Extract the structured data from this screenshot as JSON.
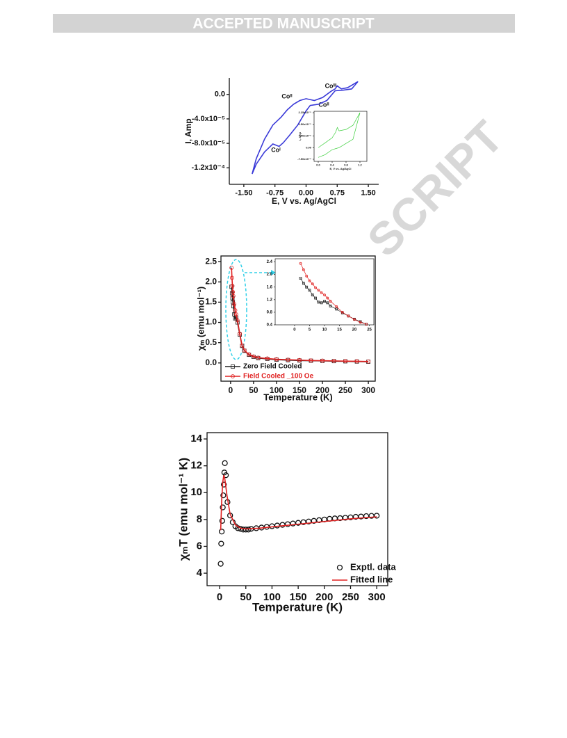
{
  "header": {
    "title": "ACCEPTED MANUSCRIPT"
  },
  "watermark": "SCRIPT",
  "chart_data": [
    {
      "type": "line",
      "x_label": "E, V vs. Ag/AgCl",
      "y_label": "I, Amp",
      "xlim": [
        -1.85,
        1.75
      ],
      "ylim": [
        -0.000147,
        2.7e-05
      ],
      "xticks": [
        {
          "value": -1.5,
          "label": "-1.50"
        },
        {
          "value": -0.75,
          "label": "-0.75"
        },
        {
          "value": 0,
          "label": "0.00"
        },
        {
          "value": 0.75,
          "label": "0.75"
        },
        {
          "value": 1.5,
          "label": "1.50"
        }
      ],
      "yticks": [
        {
          "value": 0,
          "label": "0.0"
        },
        {
          "value": -4e-05,
          "label": "-4.0x10⁻⁵"
        },
        {
          "value": -8e-05,
          "label": "-8.0x10⁻⁵"
        },
        {
          "value": -0.00012,
          "label": "-1.2x10⁻⁴"
        }
      ],
      "annotations": [
        "Coᴵᴵ",
        "Coᴵ",
        "Coᴵᴵᴵ",
        "Coᴵᴵ"
      ],
      "series": [
        {
          "color": "#3a3ad8",
          "mode": "line",
          "x": [
            -1.3,
            -1.2,
            -1.0,
            -0.8,
            -0.6,
            -0.45,
            -0.3,
            -0.15,
            0.0,
            0.2,
            0.4,
            0.6,
            0.7,
            0.75,
            0.85,
            1.0,
            1.25,
            1.1,
            0.9,
            0.7,
            0.5,
            0.3,
            0.1,
            0.0,
            -0.2,
            -0.4,
            -0.55,
            -0.65,
            -0.8,
            -1.0,
            -1.2,
            -1.3
          ],
          "values": [
            -0.00013,
            -0.000105,
            -7.3e-05,
            -5e-05,
            -3.7e-05,
            -2.5e-05,
            -1.6e-05,
            -1e-05,
            -7e-06,
            -1e-05,
            -5e-06,
            5e-06,
            9e-06,
            1.4e-05,
            9e-06,
            1.1e-05,
            2.1e-05,
            9e-06,
            7e-06,
            6e-06,
            -1e-05,
            -1.6e-05,
            -1.8e-05,
            -2.7e-05,
            -5e-05,
            -6.7e-05,
            -7.9e-05,
            -8.5e-05,
            -8.1e-05,
            -9.4e-05,
            -0.000114,
            -0.00013
          ]
        }
      ]
    },
    {
      "type": "line",
      "x_label": "E, V vs. Ag/AgCl",
      "y_label": "I, Amp",
      "xlim": [
        -0.12,
        1.4
      ],
      "ylim": [
        -8.85e-06,
        2.34e-05
      ],
      "xticks": [
        {
          "value": 0,
          "label": "0.0"
        },
        0.4,
        0.8,
        1.2
      ],
      "yticks": [
        {
          "value": 2.25e-05,
          "label": "2.25x10⁻⁵"
        },
        {
          "value": 1.5e-05,
          "label": "1.50x10⁻⁵"
        },
        {
          "value": 7.5e-06,
          "label": "7.50x10⁻⁶"
        },
        {
          "value": 0,
          "label": "0.00"
        },
        {
          "value": -7.5e-06,
          "label": "-7.50x10⁻⁶"
        }
      ],
      "series": [
        {
          "color": "#3ccf3c",
          "mode": "line",
          "x": [
            0.0,
            0.2,
            0.4,
            0.5,
            0.55,
            0.6,
            0.8,
            1.0,
            1.2,
            1.0,
            0.8,
            0.6,
            0.4,
            0.2,
            0.0
          ],
          "values": [
            0,
            3.1e-06,
            6.3e-06,
            9.9e-06,
            1.3e-05,
            1.08e-05,
            1.17e-05,
            1.44e-05,
            2.25e-05,
            5.4e-06,
            2.7e-06,
            0,
            -1.3e-06,
            -4.5e-06,
            -6.3e-06
          ]
        }
      ]
    },
    {
      "type": "line",
      "x_label": "Temperature (K)",
      "y_label": "χₘ (emu mol⁻¹)",
      "xlim": [
        -21,
        315
      ],
      "ylim": [
        -0.45,
        2.64
      ],
      "xticks": [
        0,
        50,
        100,
        150,
        200,
        250,
        300
      ],
      "yticks": [
        {
          "value": 0,
          "label": "0.0"
        },
        0.5,
        {
          "value": 1,
          "label": "1.0"
        },
        1.5,
        {
          "value": 2,
          "label": "2.0"
        },
        2.5
      ],
      "legend": "lower left",
      "series": [
        {
          "name": "Zero Field Cooled",
          "color": "#222222",
          "mode": "line+markers",
          "marker": "square",
          "x": [
            2,
            3,
            4,
            5,
            6,
            8,
            10,
            12,
            15,
            20,
            25,
            30,
            40,
            50,
            60,
            80,
            100,
            125,
            150,
            175,
            200,
            225,
            250,
            275,
            300
          ],
          "values": [
            1.88,
            1.72,
            1.6,
            1.5,
            1.4,
            1.2,
            1.1,
            1.12,
            1.0,
            0.7,
            0.42,
            0.3,
            0.2,
            0.15,
            0.12,
            0.1,
            0.08,
            0.07,
            0.06,
            0.055,
            0.05,
            0.045,
            0.04,
            0.035,
            0.03
          ]
        },
        {
          "name": "Field Cooled _100 Oe",
          "color": "#e02020",
          "mode": "line+markers",
          "marker": "circle",
          "x": [
            2,
            3,
            4,
            5,
            6,
            8,
            10,
            12,
            15,
            20,
            25,
            30,
            40,
            50,
            60,
            80,
            100,
            125,
            150,
            175,
            200,
            225,
            250,
            275,
            300
          ],
          "values": [
            2.35,
            2.1,
            1.9,
            1.75,
            1.65,
            1.45,
            1.3,
            1.2,
            1.05,
            0.72,
            0.43,
            0.31,
            0.21,
            0.16,
            0.13,
            0.11,
            0.09,
            0.08,
            0.07,
            0.06,
            0.055,
            0.05,
            0.045,
            0.04,
            0.035
          ]
        }
      ]
    },
    {
      "type": "line",
      "xlim": [
        -6.5,
        26.5
      ],
      "ylim": [
        0.4,
        2.5
      ],
      "xticks": [
        0,
        5,
        10,
        15,
        20,
        25
      ],
      "yticks": [
        0.4,
        0.8,
        1.2,
        1.6,
        {
          "value": 2,
          "label": "2.0"
        },
        2.4
      ],
      "series": [
        {
          "color": "#222222",
          "mode": "line+markers",
          "marker": "square",
          "x": [
            2,
            3,
            4,
            5,
            6,
            7,
            8,
            9,
            10,
            11,
            12,
            14,
            16,
            18,
            20,
            22,
            24
          ],
          "values": [
            1.88,
            1.72,
            1.6,
            1.5,
            1.35,
            1.25,
            1.12,
            1.1,
            1.15,
            1.1,
            1.0,
            0.9,
            0.78,
            0.68,
            0.58,
            0.5,
            0.42
          ]
        },
        {
          "color": "#e02020",
          "mode": "line+markers",
          "marker": "circle",
          "x": [
            2,
            3,
            4,
            5,
            6,
            7,
            8,
            9,
            10,
            11,
            12,
            14,
            16,
            18,
            20,
            22,
            24
          ],
          "values": [
            2.35,
            2.15,
            1.95,
            1.8,
            1.7,
            1.58,
            1.5,
            1.42,
            1.35,
            1.25,
            1.15,
            0.98,
            0.8,
            0.68,
            0.57,
            0.48,
            0.42
          ]
        }
      ]
    },
    {
      "type": "line",
      "x_label": "Temperature (K)",
      "y_label": "χₘT (emu mol⁻¹ K)",
      "xlim": [
        -24,
        321
      ],
      "ylim": [
        3.07,
        14.47
      ],
      "xticks": [
        0,
        50,
        100,
        150,
        200,
        250,
        300
      ],
      "yticks": [
        4,
        6,
        8,
        10,
        12,
        14
      ],
      "legend": "lower right",
      "series": [
        {
          "name": "Exptl. data",
          "color": "#111111",
          "mode": "markers",
          "marker": "circle",
          "x": [
            2,
            3,
            4,
            5,
            6,
            7,
            8,
            9,
            10,
            12,
            15,
            20,
            25,
            30,
            35,
            40,
            45,
            50,
            55,
            60,
            70,
            80,
            90,
            100,
            110,
            120,
            130,
            140,
            150,
            160,
            170,
            180,
            190,
            200,
            210,
            220,
            230,
            240,
            250,
            260,
            270,
            280,
            290,
            300
          ],
          "values": [
            4.7,
            6.2,
            7.1,
            7.9,
            8.9,
            9.8,
            10.6,
            11.5,
            12.2,
            11.3,
            9.3,
            8.3,
            7.8,
            7.5,
            7.35,
            7.3,
            7.25,
            7.25,
            7.25,
            7.3,
            7.35,
            7.4,
            7.45,
            7.5,
            7.55,
            7.6,
            7.65,
            7.7,
            7.75,
            7.8,
            7.85,
            7.9,
            7.95,
            8.0,
            8.05,
            8.08,
            8.1,
            8.13,
            8.16,
            8.2,
            8.22,
            8.25,
            8.27,
            8.28
          ]
        },
        {
          "name": "Fitted line",
          "color": "#e02020",
          "mode": "line",
          "x": [
            2,
            4,
            6,
            8,
            10,
            14,
            20,
            30,
            40,
            50,
            75,
            100,
            150,
            200,
            250,
            300
          ],
          "values": [
            7.2,
            9.5,
            10.8,
            11.3,
            11.0,
            9.8,
            8.4,
            7.6,
            7.35,
            7.3,
            7.35,
            7.45,
            7.65,
            7.85,
            8.05,
            8.2
          ]
        }
      ]
    }
  ]
}
